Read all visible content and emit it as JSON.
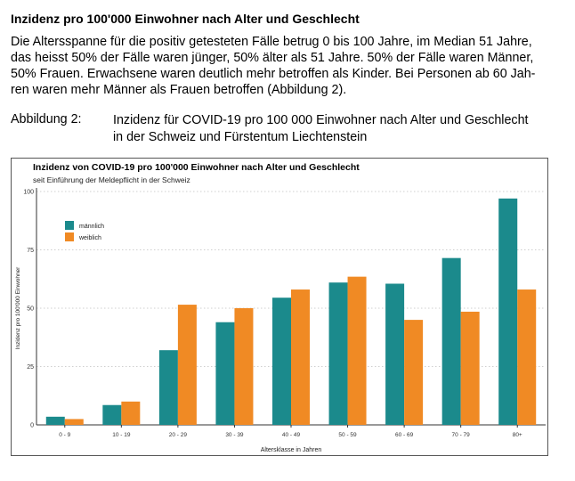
{
  "section_heading": "Inzidenz pro 100'000 Einwohner nach Alter und Geschlecht",
  "paragraph_lines": [
    "Die Altersspanne für die positiv getesteten Fälle betrug 0 bis 100 Jahre, im Median 51 Jahre,",
    "das heisst 50% der Fälle waren jünger, 50% älter als 51 Jahre. 50% der Fälle waren Männer,",
    "50% Frauen. Erwachsene waren deutlich mehr betroffen als Kinder. Bei Personen ab 60 Jah-",
    "ren waren mehr Männer als Frauen betroffen (Abbildung 2)."
  ],
  "figure": {
    "label": "Abbildung 2:",
    "caption_lines": [
      "Inzidenz für COVID-19 pro 100 000 Einwohner nach Alter und Geschlecht",
      "in der Schweiz und Fürstentum Liechtenstein"
    ]
  },
  "chart_data": {
    "type": "bar",
    "title": "Inzidenz von COVID-19 pro 100'000 Einwohner nach Alter und Geschlecht",
    "subtitle": "seit Einführung der Meldepflicht in der Schweiz",
    "xlabel": "Altersklasse in Jahren",
    "ylabel": "Inzidenz pro 100'000 Einwohner",
    "ylim": [
      0,
      100
    ],
    "yticks": [
      0,
      25,
      50,
      75,
      100
    ],
    "grid": "horizontal dotted",
    "legend_position": "top-left",
    "categories": [
      "0 - 9",
      "10 - 19",
      "20 - 29",
      "30 - 39",
      "40 - 49",
      "50 - 59",
      "60 - 69",
      "70 - 79",
      "80+"
    ],
    "series": [
      {
        "name": "männlich",
        "color": "#1b8a8c",
        "values": [
          3.5,
          8.5,
          32,
          44,
          54.5,
          61,
          60.5,
          71.5,
          97
        ]
      },
      {
        "name": "weiblich",
        "color": "#f08a24",
        "values": [
          2.5,
          10,
          51.5,
          50,
          58,
          63.5,
          45,
          48.5,
          58
        ]
      }
    ]
  }
}
